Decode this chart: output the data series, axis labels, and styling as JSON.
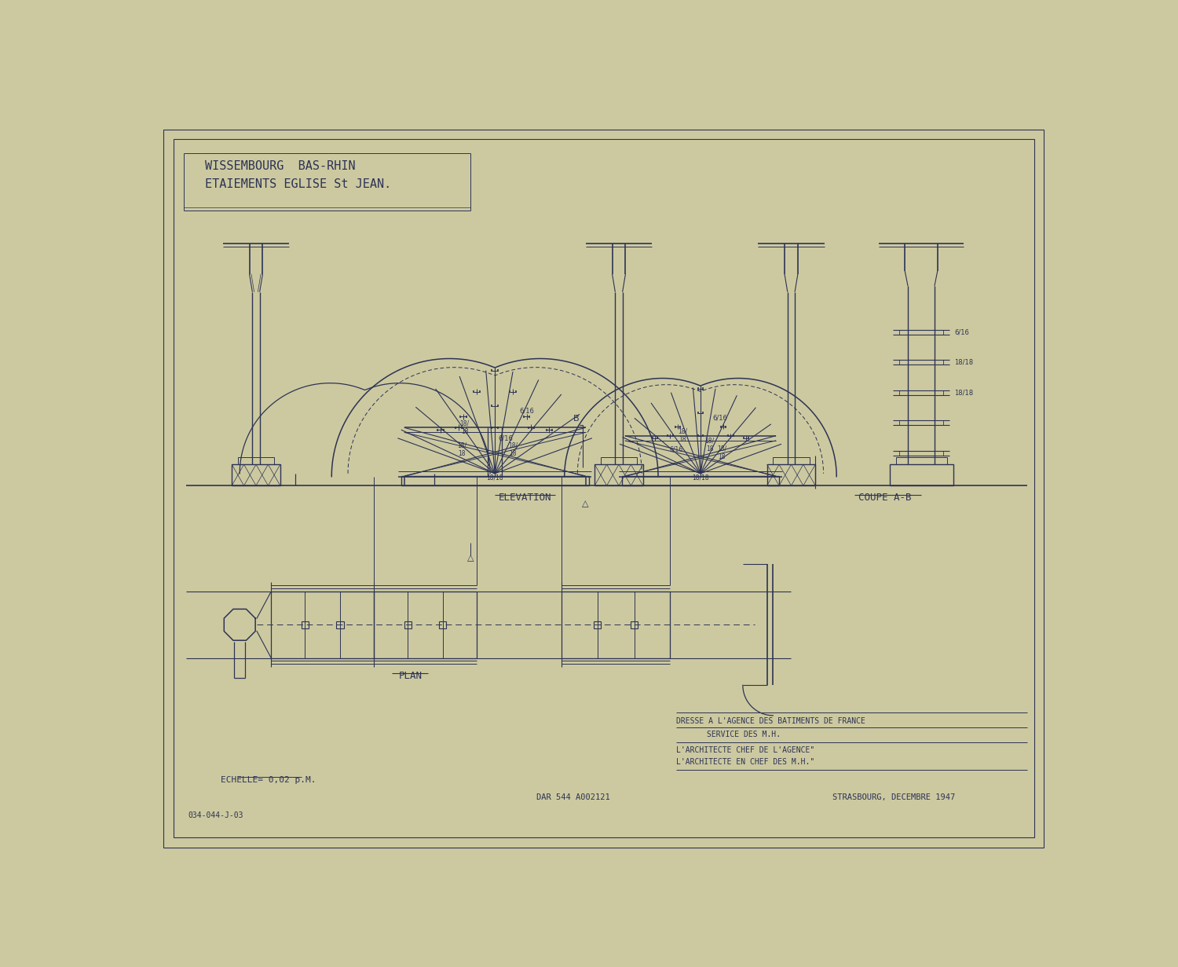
{
  "bg_color": "#ccc9a0",
  "line_color": "#2d3355",
  "title_line1": "WISSEMBOURG  BAS-RHIN",
  "title_line2": "ETAIEMENTS EGLISE St JEAN.",
  "label_elevation": "ELEVATION",
  "label_coupe": "COUPE A-B",
  "label_plan": "PLAN",
  "label_echelle": "ECHELLE= 0,02 p.M.",
  "label_dresse": "DRESSE A L'AGENCE DES BATIMENTS DE FRANCE",
  "label_service": "SERVICE DES M.H.",
  "label_arch1": "L'ARCHITECTE CHEF DE L'AGENCE\"",
  "label_arch2": "L'ARCHITECTE EN CHEF DES M.H.\"",
  "label_dar": "DAR 544 A002121",
  "label_strasbourg": "STRASBOURG, DECEMBRE 1947",
  "label_ref": "034-044-J-03"
}
